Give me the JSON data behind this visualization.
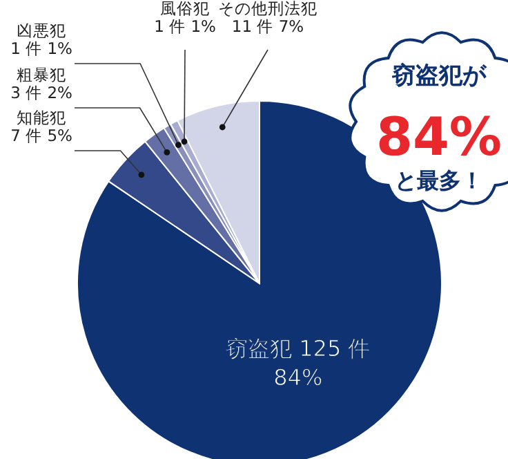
{
  "chart_data": {
    "type": "pie",
    "categories": [
      "窃盗犯",
      "知能犯",
      "粗暴犯",
      "凶悪犯",
      "風俗犯",
      "その他刑法犯"
    ],
    "values": [
      125,
      7,
      3,
      1,
      1,
      11
    ],
    "value_labels": [
      "125 件 84%",
      "7 件 5%",
      "3 件 2%",
      "1 件 1%",
      "1 件 1%",
      "11 件 7%"
    ],
    "colors": [
      "#0f3372",
      "#34498a",
      "#636fa5",
      "#8a90bb",
      "#a7acd0",
      "#d2d4e7"
    ],
    "annotations": [
      "窃盗犯が",
      "84%",
      "と最多！"
    ],
    "legend": false
  }
}
